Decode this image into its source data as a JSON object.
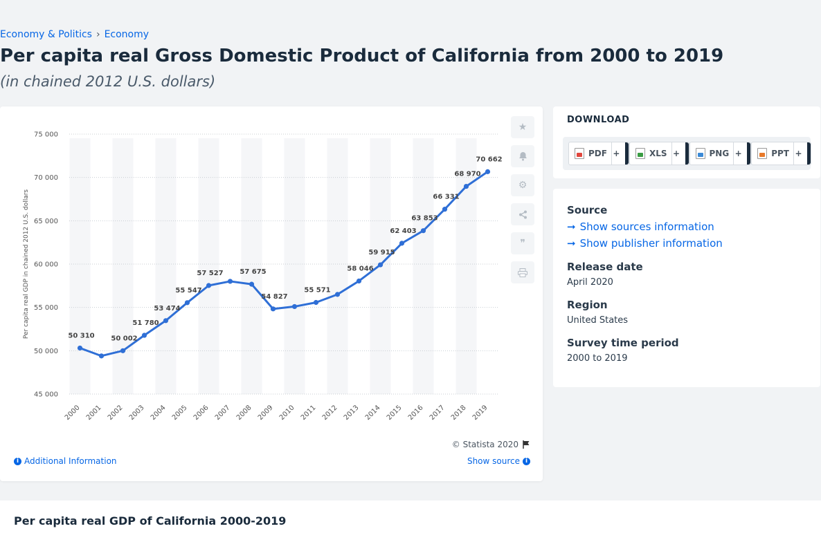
{
  "breadcrumb": {
    "items": [
      "Economy & Politics",
      "Economy"
    ],
    "separator": "›"
  },
  "title": "Per capita real Gross Domestic Product of California from 2000 to 2019",
  "subtitle": "(in chained 2012 U.S. dollars)",
  "chart_data": {
    "type": "line",
    "x": [
      "2000",
      "2001",
      "2002",
      "2003",
      "2004",
      "2005",
      "2006",
      "2007",
      "2008",
      "2009",
      "2010",
      "2011",
      "2012",
      "2013",
      "2014",
      "2015",
      "2016",
      "2017",
      "2018",
      "2019"
    ],
    "values": [
      50310,
      49400,
      50002,
      51780,
      53474,
      55547,
      57527,
      58010,
      57675,
      54827,
      55100,
      55571,
      56500,
      58046,
      59915,
      62403,
      63853,
      66331,
      68970,
      70662
    ],
    "data_labels": {
      "0": "50 310",
      "2": "50 002",
      "3": "51 780",
      "4": "53 474",
      "5": "55 547",
      "6": "57 527",
      "8": "57 675",
      "9": "54 827",
      "11": "55 571",
      "13": "58 046",
      "14": "59 915",
      "15": "62 403",
      "16": "63 853",
      "17": "66 331",
      "18": "68 970",
      "19": "70 662"
    },
    "ylabel": "Per capita real GDP in chained 2012 U.S. dollars",
    "yticks": [
      45000,
      50000,
      55000,
      60000,
      65000,
      70000,
      75000
    ],
    "ytick_labels": [
      "45 000",
      "50 000",
      "55 000",
      "60 000",
      "65 000",
      "70 000",
      "75 000"
    ],
    "ylim": [
      45000,
      75000
    ],
    "grid": true,
    "line_color": "#2f6fd6"
  },
  "chart_footer": {
    "copyright": "© Statista 2020",
    "additional_info": "Additional Information",
    "show_source": "Show source"
  },
  "side_actions": [
    "star-icon",
    "bell-icon",
    "gear-icon",
    "share-icon",
    "quote-icon",
    "print-icon"
  ],
  "download": {
    "title": "DOWNLOAD",
    "buttons": [
      {
        "label": "PDF",
        "color": "#e0463d"
      },
      {
        "label": "XLS",
        "color": "#3a9c43"
      },
      {
        "label": "PNG",
        "color": "#3c8ad6"
      },
      {
        "label": "PPT",
        "color": "#e87a2a"
      }
    ],
    "plus": "+"
  },
  "meta": {
    "source_label": "Source",
    "show_sources": "Show sources information",
    "show_publisher": "Show publisher information",
    "release_label": "Release date",
    "release_value": "April 2020",
    "region_label": "Region",
    "region_value": "United States",
    "survey_label": "Survey time period",
    "survey_value": "2000 to 2019"
  },
  "bottom": {
    "title": "Per capita real GDP of California 2000-2019"
  }
}
